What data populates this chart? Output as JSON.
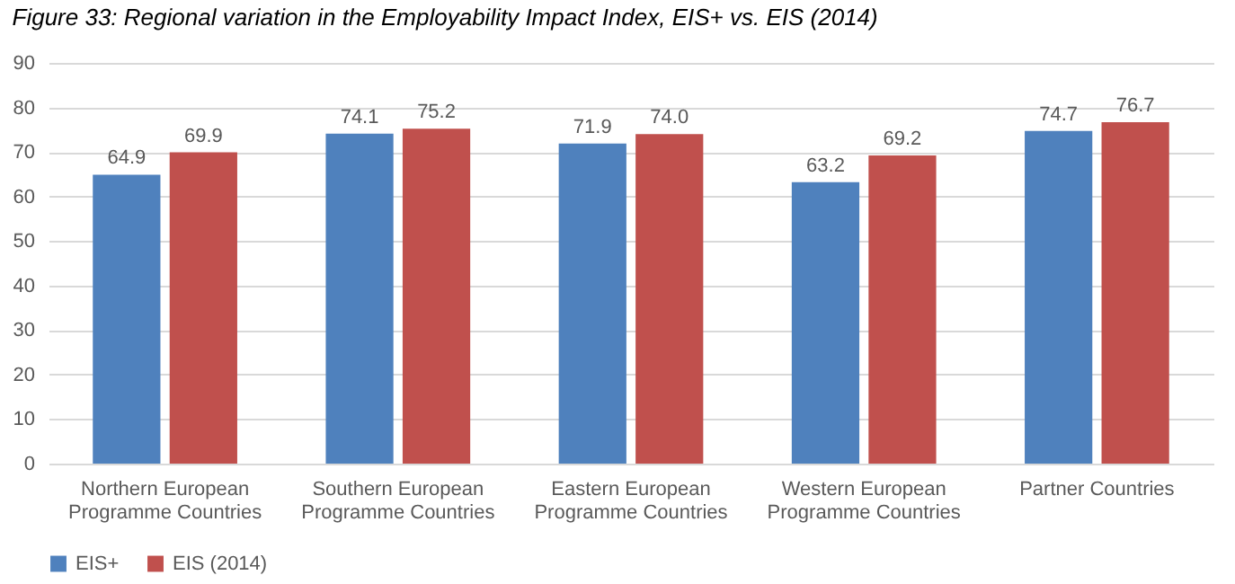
{
  "chart_data": {
    "type": "bar",
    "title": "Figure 33: Regional variation in the Employability Impact Index, EIS+ vs. EIS (2014)",
    "categories": [
      "Northern European Programme Countries",
      "Southern European Programme Countries",
      "Eastern European Programme Countries",
      "Western European Programme Countries",
      "Partner Countries"
    ],
    "series": [
      {
        "name": "EIS+",
        "color": "#4f81bd",
        "values": [
          64.9,
          74.1,
          71.9,
          63.2,
          74.7
        ],
        "value_labels": [
          "64.9",
          "74.1",
          "71.9",
          "63.2",
          "74.7"
        ]
      },
      {
        "name": "EIS (2014)",
        "color": "#c0504d",
        "values": [
          69.9,
          75.2,
          74.0,
          69.2,
          76.7
        ],
        "value_labels": [
          "69.9",
          "75.2",
          "74.0",
          "69.2",
          "76.7"
        ]
      }
    ],
    "ylim": [
      0,
      90
    ],
    "yticks": [
      0,
      10,
      20,
      30,
      40,
      50,
      60,
      70,
      80,
      90
    ],
    "grid": "y",
    "legend": "bottom"
  }
}
